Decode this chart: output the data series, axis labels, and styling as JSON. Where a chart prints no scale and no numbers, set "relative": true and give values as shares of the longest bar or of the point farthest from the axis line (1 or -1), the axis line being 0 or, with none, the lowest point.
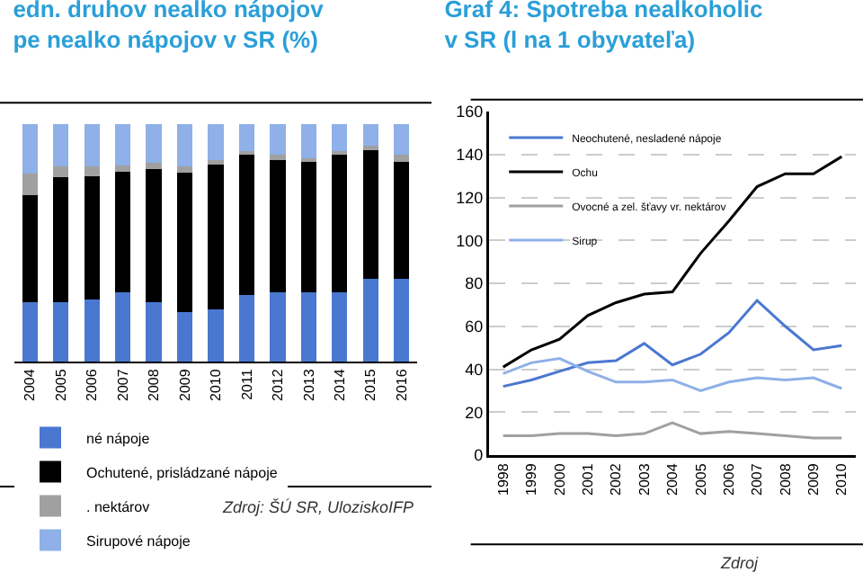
{
  "chart_data": [
    {
      "type": "bar",
      "title": "edn. druhov nealko nápojov\npe nealko nápojov v SR (%)",
      "categories": [
        "2004",
        "2005",
        "2006",
        "2007",
        "2008",
        "2009",
        "2010",
        "2011",
        "2012",
        "2013",
        "2014",
        "2015",
        "2016"
      ],
      "stacked": true,
      "relative": true,
      "legend": "bottom",
      "annotations": [
        "Zdroj: ŠÚ SR, UloziskoIFP"
      ],
      "series": [
        {
          "name": "né nápoje",
          "color": "#4a78d0",
          "values": [
            0.25,
            0.25,
            0.26,
            0.29,
            0.25,
            0.21,
            0.22,
            0.28,
            0.29,
            0.29,
            0.29,
            0.35,
            0.35
          ]
        },
        {
          "name": "Ochutené, prisládzané nápoje",
          "color": "#000000",
          "values": [
            0.45,
            0.525,
            0.52,
            0.51,
            0.56,
            0.585,
            0.61,
            0.59,
            0.56,
            0.55,
            0.58,
            0.54,
            0.49
          ]
        },
        {
          "name": ". nektárov",
          "color": "#a0a0a0",
          "values": [
            0.09,
            0.045,
            0.04,
            0.025,
            0.025,
            0.025,
            0.02,
            0.015,
            0.02,
            0.015,
            0.015,
            0.02,
            0.03
          ]
        },
        {
          "name": "Sirupové nápoje",
          "color": "#8fb0e8",
          "values": [
            0.21,
            0.18,
            0.18,
            0.175,
            0.165,
            0.18,
            0.15,
            0.115,
            0.13,
            0.145,
            0.115,
            0.09,
            0.13
          ]
        }
      ]
    },
    {
      "type": "line",
      "title": "Graf 4: Spotreba nealkoholic\nv SR (l na 1 obyvateľa)",
      "x": [
        1998,
        1999,
        2000,
        2001,
        2002,
        2003,
        2004,
        2005,
        2006,
        2007,
        2008,
        2009,
        2010
      ],
      "xlim": [
        1997.5,
        2010.5
      ],
      "xticks": [
        1998,
        1999,
        2000,
        2001,
        2002,
        2003,
        2004,
        2005,
        2006,
        2007,
        2008,
        2009,
        2010
      ],
      "ylim": [
        0,
        160
      ],
      "yticks": [
        0,
        20,
        40,
        60,
        80,
        100,
        120,
        140,
        160
      ],
      "grid": "y",
      "legend": "top",
      "annotations": [
        "Zdroj"
      ],
      "series": [
        {
          "name": "Neochutené, nesladené nápoje",
          "color": "#4a78d0",
          "values": [
            32,
            35,
            39,
            43,
            44,
            52,
            42,
            47,
            57,
            72,
            60,
            49,
            51
          ]
        },
        {
          "name": "Ochu",
          "color": "#000000",
          "values": [
            41,
            49,
            54,
            65,
            71,
            75,
            76,
            94,
            109,
            125,
            131,
            131,
            139
          ]
        },
        {
          "name": "Ovocné a zel. šťavy vr. nektárov",
          "color": "#a0a0a0",
          "values": [
            9,
            9,
            10,
            10,
            9,
            10,
            15,
            10,
            11,
            10,
            9,
            8,
            8
          ]
        },
        {
          "name": "Sirup",
          "color": "#8fb0e8",
          "values": [
            38,
            43,
            45,
            39,
            34,
            34,
            35,
            30,
            34,
            36,
            35,
            36,
            31
          ]
        }
      ]
    }
  ]
}
